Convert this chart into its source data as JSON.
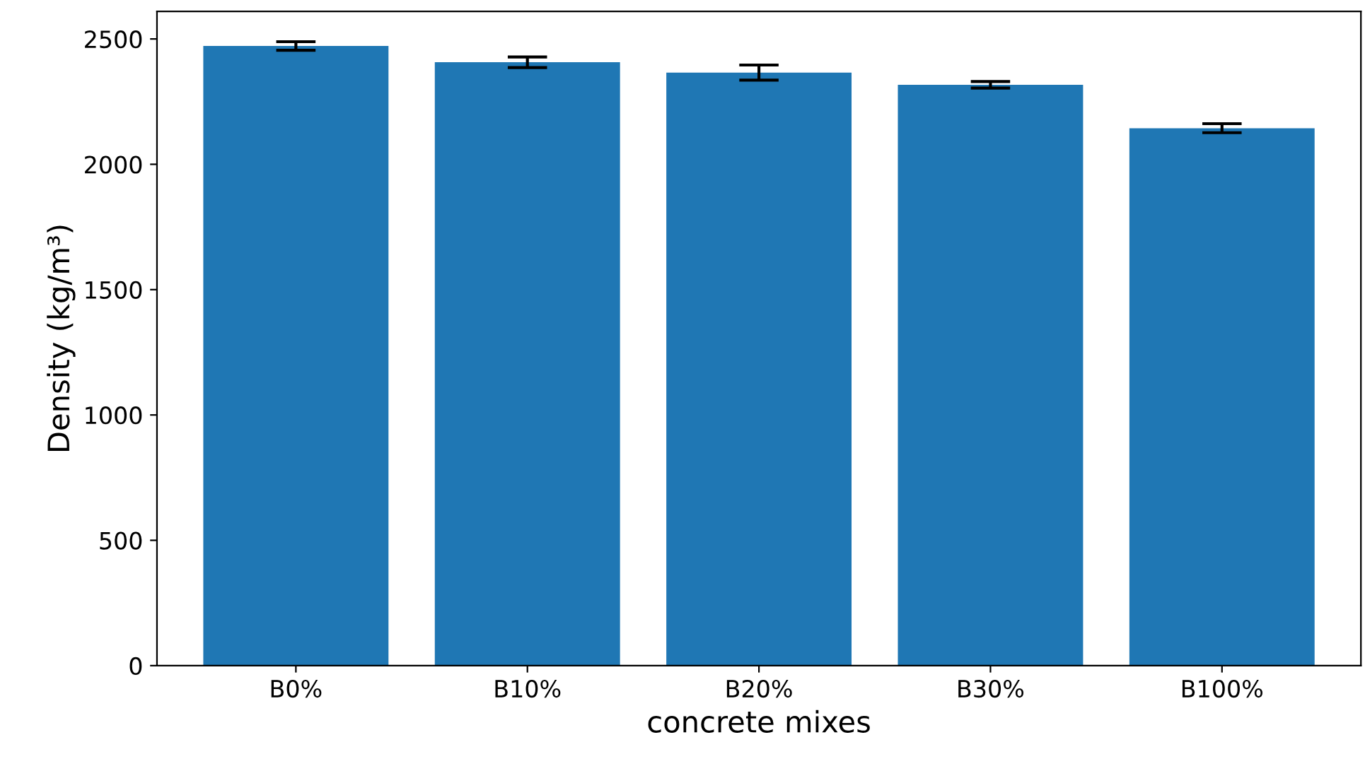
{
  "chart_data": {
    "type": "bar",
    "xlabel": "concrete mixes",
    "ylabel": "Density (kg/m³)",
    "categories": [
      "B0%",
      "B10%",
      "B20%",
      "B30%",
      "B100%"
    ],
    "values": [
      2472,
      2407,
      2366,
      2317,
      2144
    ],
    "errors": [
      17,
      21,
      30,
      13,
      18
    ],
    "color": "#1f77b4",
    "ylim": [
      0,
      2610
    ],
    "yticks": [
      0,
      500,
      1000,
      1500,
      2000,
      2500
    ],
    "grid": false,
    "legend": false
  }
}
